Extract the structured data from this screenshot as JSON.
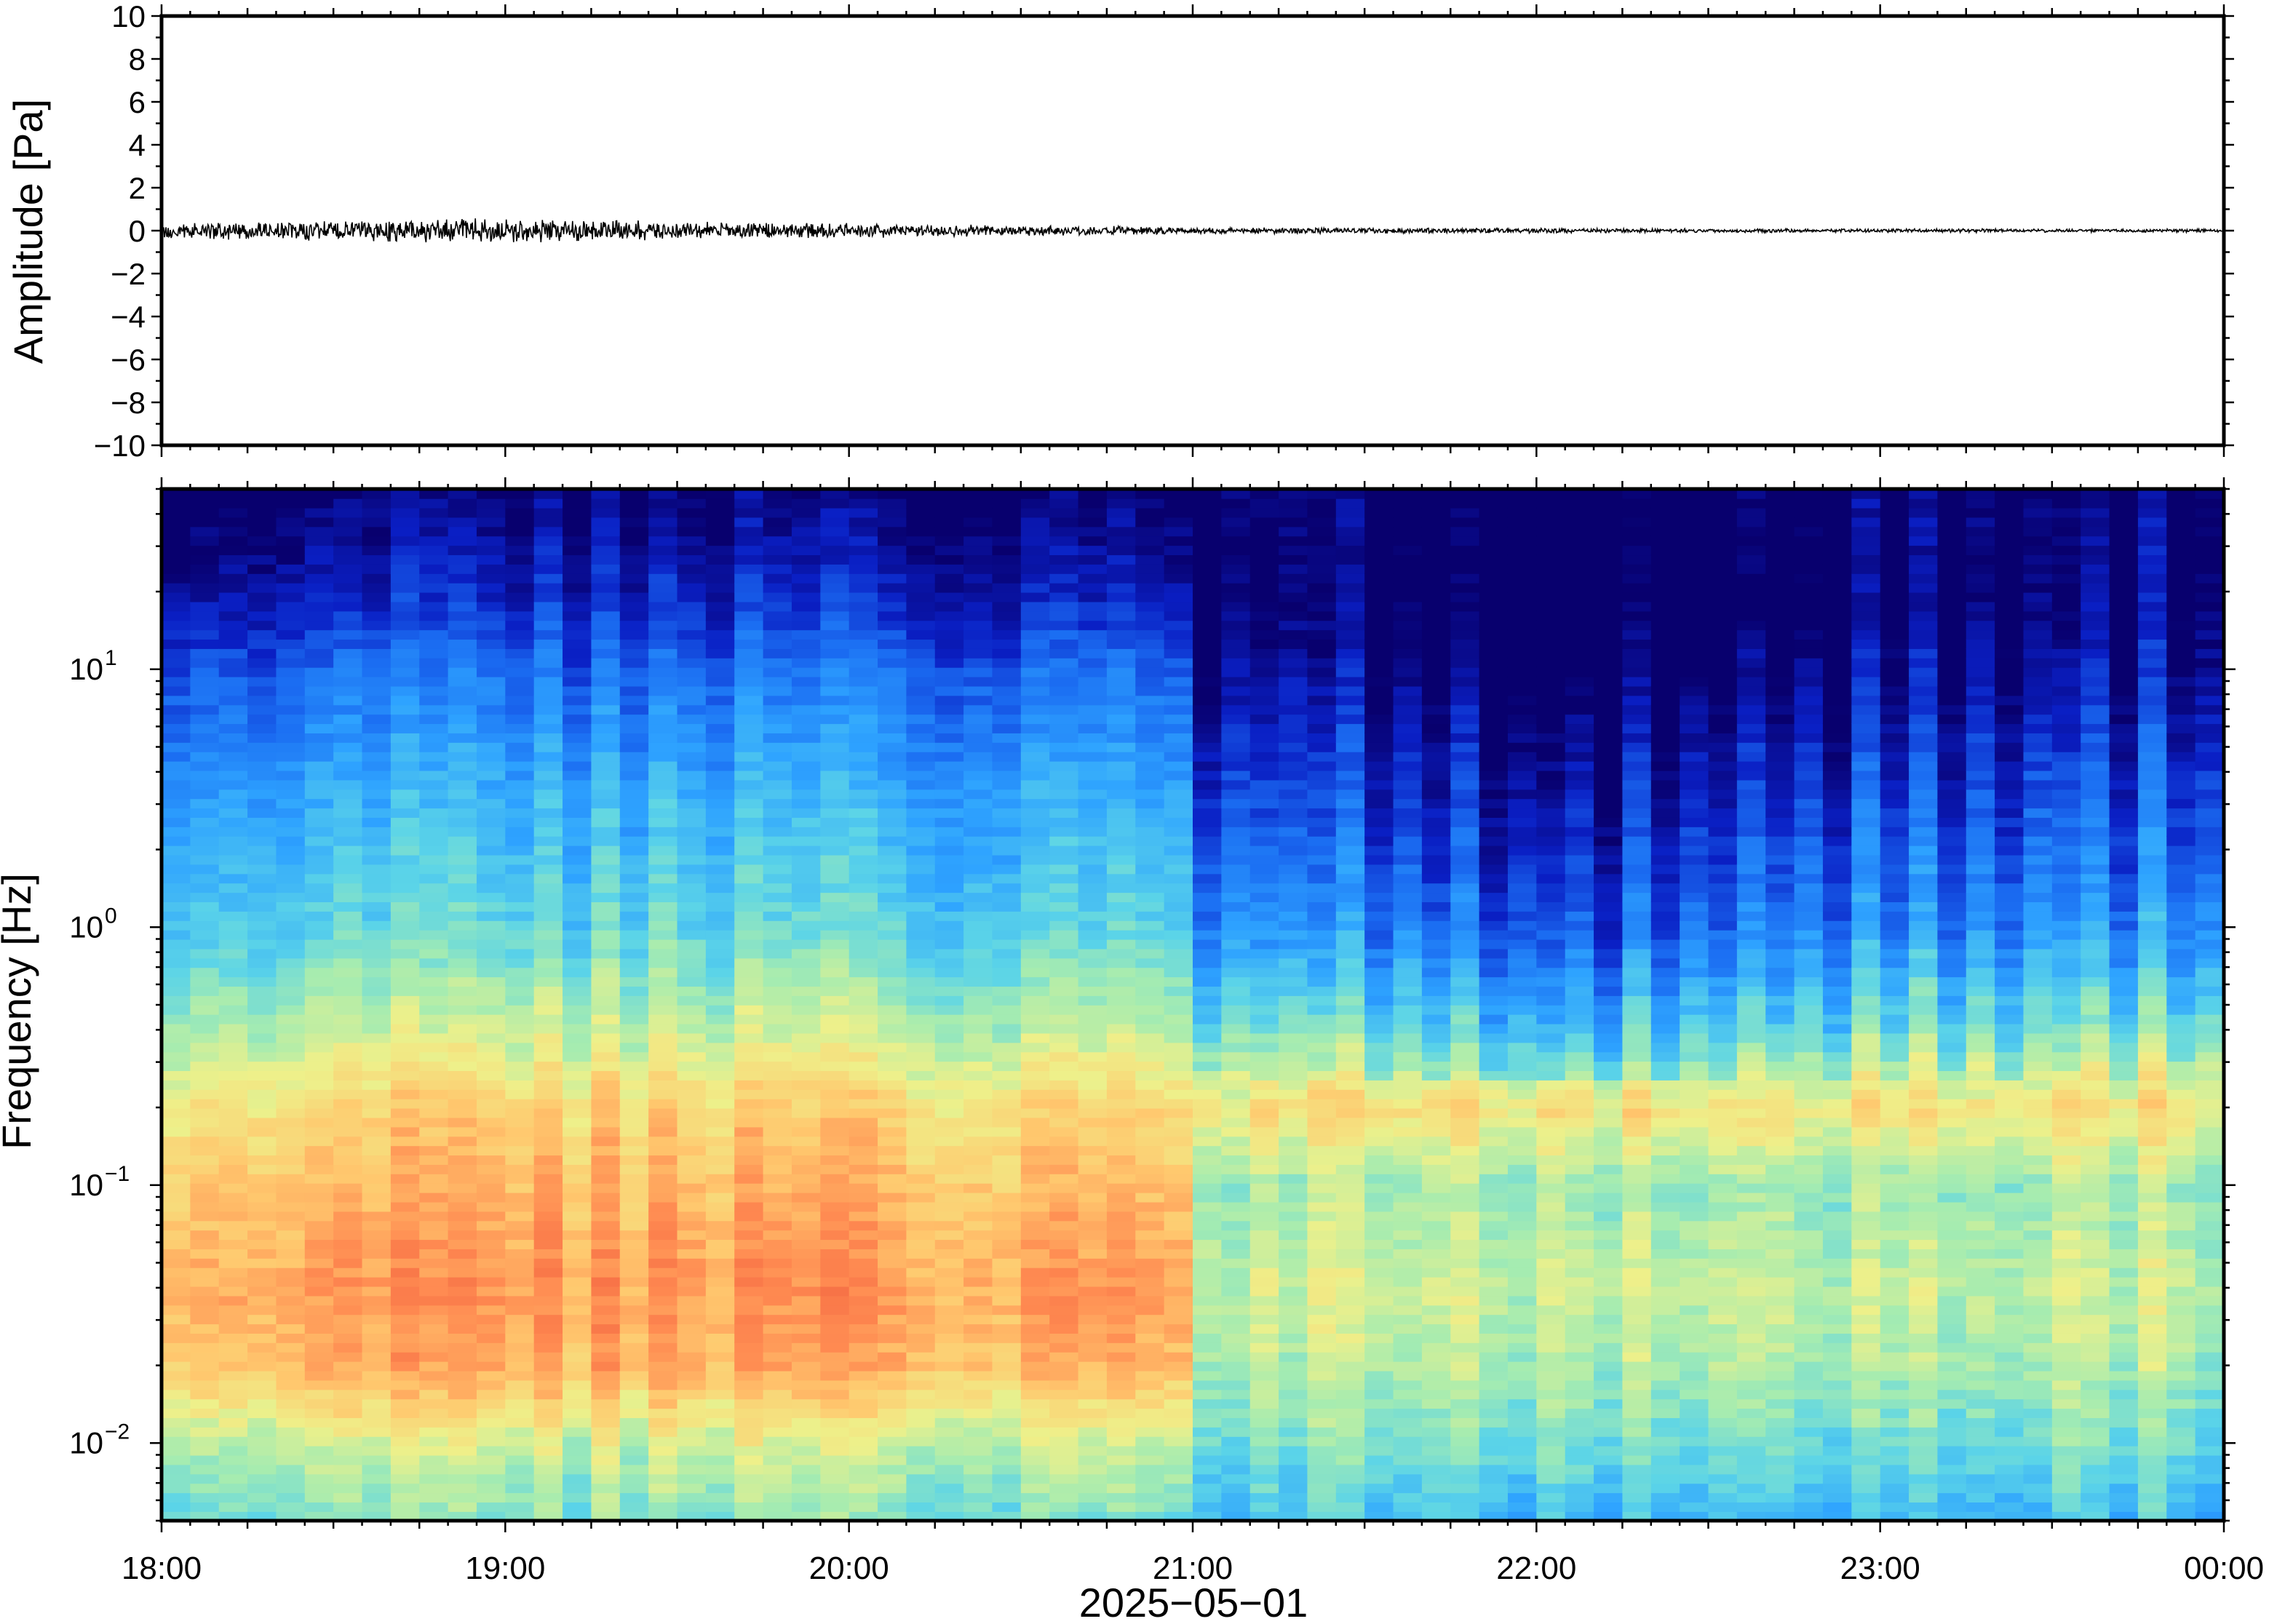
{
  "chart_data": [
    {
      "type": "line",
      "panel": "waveform",
      "ylabel": "Amplitude [Pa]",
      "ylim": [
        -10,
        10
      ],
      "yticks": [
        10,
        8,
        6,
        4,
        2,
        0,
        -2,
        -4,
        -6,
        -8,
        -10
      ],
      "ytick_labels": [
        "10",
        "8",
        "6",
        "4",
        "2",
        "0",
        "−2",
        "−4",
        "−6",
        "−8",
        "−10"
      ],
      "xlim": [
        "18:00",
        "00:00"
      ],
      "series": [
        {
          "color": "#000000",
          "envelope_hours": [
            0,
            0.5,
            1.0,
            1.5,
            2.0,
            2.5,
            3.0,
            3.5,
            4.0,
            4.5,
            5.0,
            5.5,
            6.0
          ],
          "envelope_amplitude_pa": [
            0.35,
            0.45,
            0.5,
            0.4,
            0.3,
            0.25,
            0.15,
            0.12,
            0.1,
            0.08,
            0.08,
            0.07,
            0.07
          ]
        }
      ]
    },
    {
      "type": "heatmap",
      "panel": "spectrogram",
      "ylabel": "Frequency [Hz]",
      "yscale": "log",
      "ylim": [
        0.005,
        50
      ],
      "yticks": [
        {
          "base": "10",
          "exp": "1"
        },
        {
          "base": "10",
          "exp": "0"
        },
        {
          "base": "10",
          "exp": "−1"
        },
        {
          "base": "10",
          "exp": "−2"
        }
      ],
      "xlabel": "2025−05−01",
      "xticks": [
        "18:00",
        "19:00",
        "20:00",
        "21:00",
        "22:00",
        "23:00",
        "00:00"
      ],
      "colormap": [
        "#08006e",
        "#0a1fc4",
        "#1b6df2",
        "#2ea3ff",
        "#5bd4e8",
        "#a6ecb0",
        "#eef08a",
        "#ffc86e",
        "#ff8c52",
        "#f05a3c"
      ],
      "regime_change_hour": 3.0,
      "levels": {
        "note": "relative power 0..1 along log10(frequency) for each time column",
        "profile_log10f": [
          -2.3,
          -2.0,
          -1.7,
          -1.4,
          -1.0,
          -0.7,
          -0.4,
          0.0,
          0.5,
          1.0,
          1.3,
          1.7
        ],
        "before_2100": [
          0.5,
          0.62,
          0.82,
          0.86,
          0.8,
          0.74,
          0.6,
          0.45,
          0.36,
          0.22,
          0.1,
          0.0
        ],
        "after_2100": [
          0.4,
          0.5,
          0.58,
          0.62,
          0.56,
          0.72,
          0.5,
          0.3,
          0.18,
          0.06,
          0.0,
          0.0
        ],
        "quiet_dip_hour": 4.1
      }
    }
  ]
}
